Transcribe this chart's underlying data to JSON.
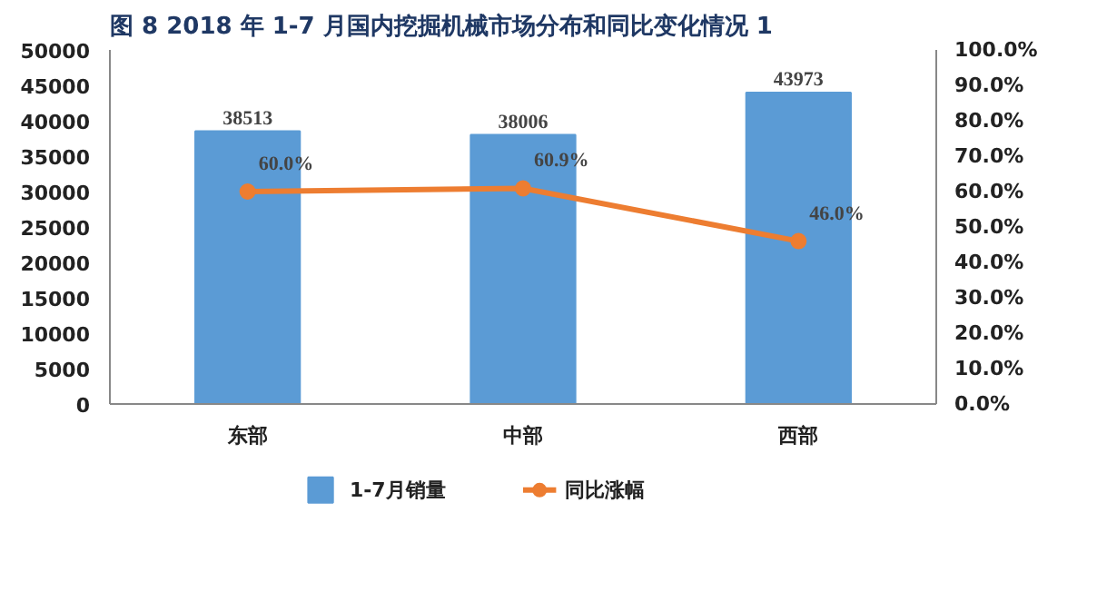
{
  "chart_data": {
    "type": "bar",
    "title": "图 8   2018 年 1-7 月国内挖掘机械市场分布和同比变化情况 1",
    "categories": [
      "东部",
      "中部",
      "西部"
    ],
    "series": [
      {
        "name": "1-7月销量",
        "type": "bar",
        "color": "#5b9bd5",
        "values": [
          38513,
          38006,
          43973
        ],
        "value_labels": [
          "38513",
          "38006",
          "43973"
        ]
      },
      {
        "name": "同比涨幅",
        "type": "line",
        "axis": "y2",
        "color": "#ed7d31",
        "marker": "circle",
        "values": [
          60.0,
          60.9,
          46.0
        ],
        "value_labels": [
          "60.0%",
          "60.9%",
          "46.0%"
        ]
      }
    ],
    "ylim": [
      0,
      50000
    ],
    "yticks": [
      0,
      5000,
      10000,
      15000,
      20000,
      25000,
      30000,
      35000,
      40000,
      45000,
      50000
    ],
    "y2lim": [
      0,
      100
    ],
    "y2ticks": [
      {
        "value": 0,
        "label": "0.0%"
      },
      {
        "value": 10,
        "label": "10.0%"
      },
      {
        "value": 20,
        "label": "20.0%"
      },
      {
        "value": 30,
        "label": "30.0%"
      },
      {
        "value": 40,
        "label": "40.0%"
      },
      {
        "value": 50,
        "label": "50.0%"
      },
      {
        "value": 60,
        "label": "60.0%"
      },
      {
        "value": 70,
        "label": "70.0%"
      },
      {
        "value": 80,
        "label": "80.0%"
      },
      {
        "value": 90,
        "label": "90.0%"
      },
      {
        "value": 100,
        "label": "100.0%"
      }
    ],
    "legend": "bottom",
    "grid": false
  }
}
